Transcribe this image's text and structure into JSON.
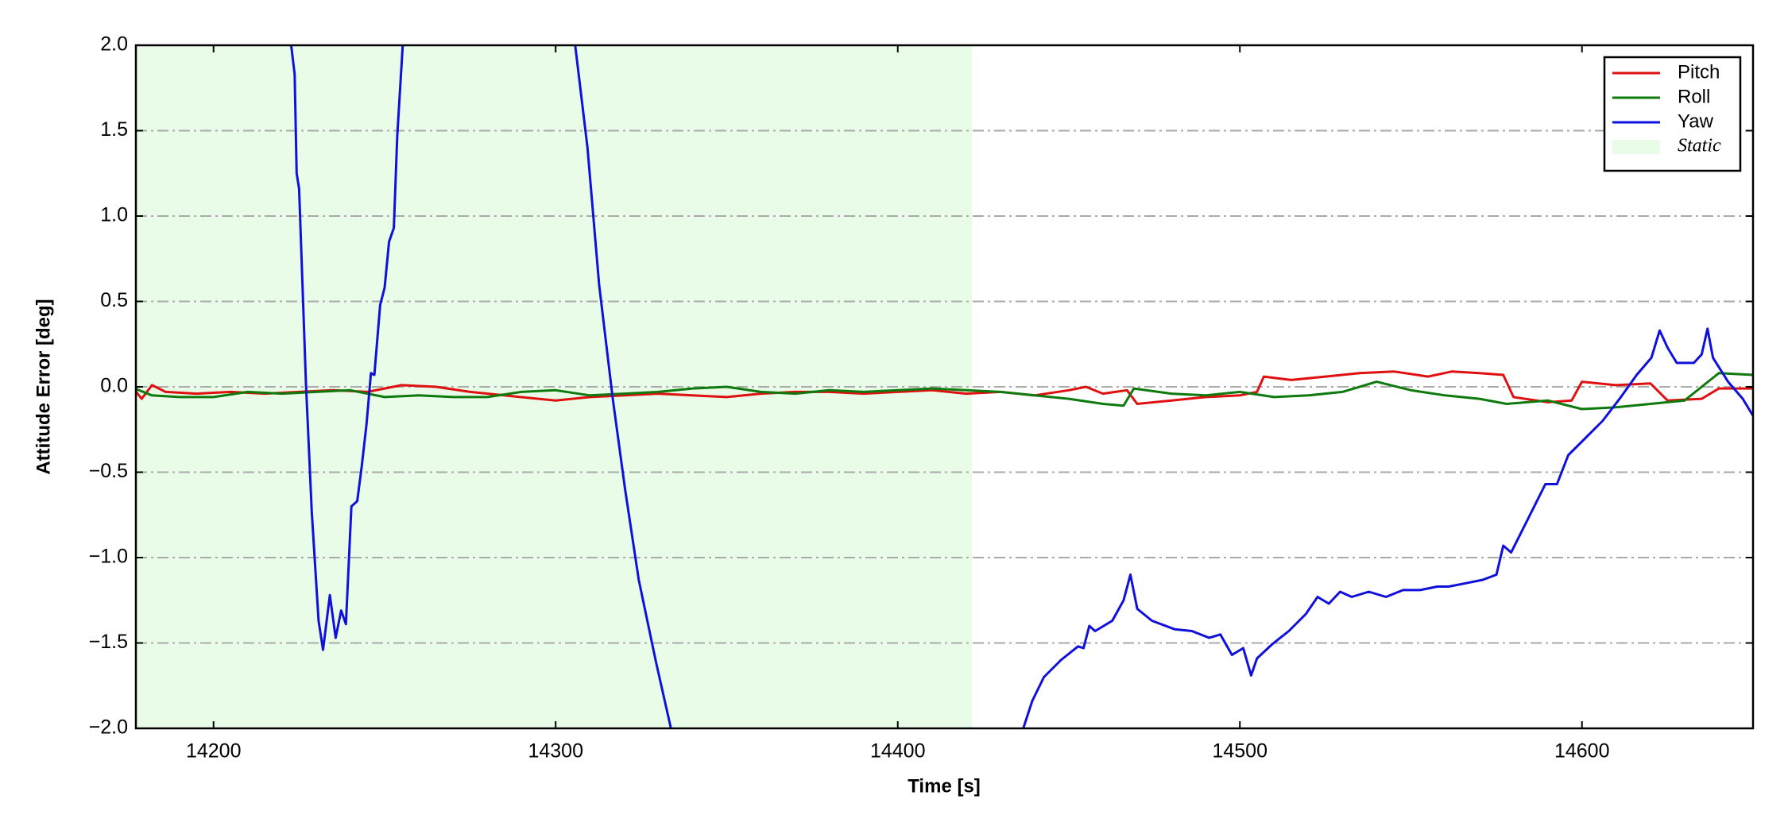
{
  "chart_data": {
    "type": "line",
    "xlabel": "Time [s]",
    "ylabel": "Attitude Error [deg]",
    "xlim": [
      14177.3,
      14650
    ],
    "ylim": [
      -2.0,
      2.0
    ],
    "xticks": [
      14200,
      14300,
      14400,
      14500,
      14600
    ],
    "yticks": [
      {
        "value": -2.0,
        "label": "−2.0"
      },
      {
        "value": -1.5,
        "label": "−1.5"
      },
      {
        "value": -1.0,
        "label": "−1.0"
      },
      {
        "value": -0.5,
        "label": "−0.5"
      },
      {
        "value": 0.0,
        "label": "0.0"
      },
      {
        "value": 0.5,
        "label": "0.5"
      },
      {
        "value": 1.0,
        "label": "1.0"
      },
      {
        "value": 1.5,
        "label": "1.5"
      },
      {
        "value": 2.0,
        "label": "2.0"
      }
    ],
    "grid": true,
    "legend": "upper right",
    "shaded_region": {
      "name": "Static",
      "x": [
        14177.3,
        14421.7
      ],
      "color": "#e8fce8"
    },
    "series": [
      {
        "name": "Pitch",
        "color": "#e01010",
        "x": [
          14177,
          14179,
          14182,
          14186,
          14195,
          14205,
          14215,
          14225,
          14235,
          14245,
          14255,
          14265,
          14275,
          14285,
          14295,
          14300,
          14310,
          14320,
          14330,
          14340,
          14350,
          14360,
          14370,
          14380,
          14390,
          14400,
          14410,
          14420,
          14430,
          14440,
          14450,
          14455,
          14460,
          14467,
          14470,
          14480,
          14490,
          14500,
          14505,
          14507,
          14515,
          14525,
          14535,
          14545,
          14555,
          14562,
          14570,
          14577,
          14580,
          14590,
          14597,
          14600,
          14610,
          14620,
          14625,
          14635,
          14640,
          14650
        ],
        "values": [
          -0.02,
          -0.07,
          0.01,
          -0.03,
          -0.04,
          -0.03,
          -0.04,
          -0.03,
          -0.02,
          -0.03,
          0.01,
          0.0,
          -0.03,
          -0.05,
          -0.07,
          -0.08,
          -0.06,
          -0.05,
          -0.04,
          -0.05,
          -0.06,
          -0.04,
          -0.03,
          -0.03,
          -0.04,
          -0.03,
          -0.02,
          -0.04,
          -0.03,
          -0.05,
          -0.02,
          0.0,
          -0.04,
          -0.02,
          -0.1,
          -0.08,
          -0.06,
          -0.05,
          -0.03,
          0.06,
          0.04,
          0.06,
          0.08,
          0.09,
          0.06,
          0.09,
          0.08,
          0.07,
          -0.06,
          -0.09,
          -0.08,
          0.03,
          0.01,
          0.02,
          -0.08,
          -0.07,
          -0.01,
          -0.01
        ]
      },
      {
        "name": "Roll",
        "color": "#0e7a0e",
        "x": [
          14177,
          14182,
          14190,
          14200,
          14210,
          14220,
          14230,
          14240,
          14250,
          14260,
          14270,
          14280,
          14290,
          14300,
          14310,
          14320,
          14330,
          14340,
          14350,
          14360,
          14370,
          14380,
          14390,
          14400,
          14410,
          14420,
          14430,
          14440,
          14450,
          14460,
          14466,
          14469,
          14480,
          14490,
          14500,
          14510,
          14520,
          14530,
          14540,
          14550,
          14560,
          14570,
          14578,
          14590,
          14600,
          14610,
          14620,
          14630,
          14640,
          14650
        ],
        "values": [
          -0.01,
          -0.05,
          -0.06,
          -0.06,
          -0.03,
          -0.04,
          -0.03,
          -0.02,
          -0.06,
          -0.05,
          -0.06,
          -0.06,
          -0.03,
          -0.02,
          -0.05,
          -0.04,
          -0.03,
          -0.01,
          0.0,
          -0.03,
          -0.04,
          -0.02,
          -0.03,
          -0.02,
          -0.01,
          -0.02,
          -0.03,
          -0.05,
          -0.07,
          -0.1,
          -0.11,
          -0.01,
          -0.04,
          -0.05,
          -0.03,
          -0.06,
          -0.05,
          -0.03,
          0.03,
          -0.02,
          -0.05,
          -0.07,
          -0.1,
          -0.08,
          -0.13,
          -0.12,
          -0.1,
          -0.08,
          0.08,
          0.07
        ]
      },
      {
        "name": "Yaw",
        "color": "#1010dd",
        "x": [
          14222.7,
          14223.7,
          14224.3,
          14225,
          14227,
          14228.7,
          14230.7,
          14232,
          14234,
          14235.7,
          14237.3,
          14238.7,
          14240.3,
          14242,
          14243.3,
          14244.7,
          14246,
          14247,
          14248.7,
          14250,
          14251.3,
          14252.7,
          14253.7,
          14255.3,
          14280,
          14305.7,
          14309.3,
          14312.7,
          14316.7,
          14320.3,
          14324.3,
          14329.3,
          14333.7,
          14385,
          14436.7,
          14439.3,
          14442.7,
          14447.7,
          14452.7,
          14454.3,
          14456,
          14457.7,
          14462.7,
          14466,
          14468,
          14470,
          14474.3,
          14481,
          14486,
          14491,
          14494.3,
          14497.7,
          14501,
          14503.3,
          14505,
          14509.3,
          14514.3,
          14519.3,
          14522.7,
          14526,
          14529.3,
          14532.7,
          14537.7,
          14542.7,
          14547.7,
          14552.7,
          14557.7,
          14561,
          14566,
          14571,
          14575,
          14577,
          14579.3,
          14584.3,
          14589.3,
          14592.7,
          14596,
          14601,
          14606,
          14611,
          14616,
          14620.3,
          14622.7,
          14625,
          14627.7,
          14632.7,
          14635,
          14636.7,
          14638.3,
          14642.7,
          14647,
          14650
        ],
        "values": [
          2.0,
          1.83,
          1.25,
          1.16,
          0.02,
          -0.73,
          -1.37,
          -1.54,
          -1.22,
          -1.47,
          -1.31,
          -1.39,
          -0.7,
          -0.67,
          -0.47,
          -0.22,
          0.08,
          0.07,
          0.48,
          0.58,
          0.85,
          0.93,
          1.47,
          2.0,
          null,
          2.0,
          1.4,
          0.6,
          -0.07,
          -0.6,
          -1.13,
          -1.61,
          -2.0,
          null,
          -2.0,
          -1.84,
          -1.7,
          -1.6,
          -1.52,
          -1.53,
          -1.4,
          -1.43,
          -1.37,
          -1.25,
          -1.1,
          -1.3,
          -1.37,
          -1.42,
          -1.43,
          -1.47,
          -1.45,
          -1.57,
          -1.53,
          -1.69,
          -1.59,
          -1.51,
          -1.43,
          -1.33,
          -1.23,
          -1.27,
          -1.2,
          -1.23,
          -1.2,
          -1.23,
          -1.19,
          -1.19,
          -1.17,
          -1.17,
          -1.15,
          -1.13,
          -1.1,
          -0.93,
          -0.97,
          -0.77,
          -0.57,
          -0.57,
          -0.4,
          -0.3,
          -0.2,
          -0.07,
          0.07,
          0.17,
          0.33,
          0.23,
          0.14,
          0.14,
          0.19,
          0.34,
          0.17,
          0.03,
          -0.07,
          -0.17
        ]
      }
    ]
  }
}
